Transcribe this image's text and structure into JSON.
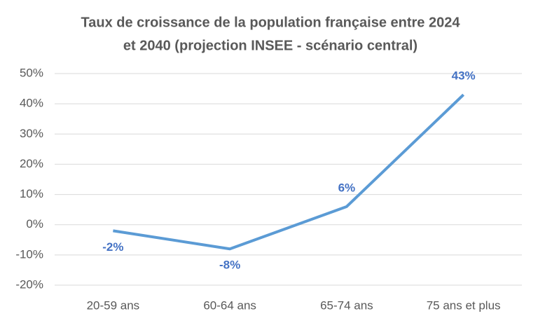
{
  "chart_data": {
    "type": "line",
    "title": [
      "Taux de croissance de la population française entre 2024",
      "et 2040 (projection INSEE - scénario central)"
    ],
    "categories": [
      "20-59 ans",
      "60-64 ans",
      "65-74 ans",
      "75 ans et plus"
    ],
    "values": [
      -2,
      -8,
      6,
      43
    ],
    "value_labels": [
      "-2%",
      "-8%",
      "6%",
      "43%"
    ],
    "color": "#5b9bd5",
    "label_color": "#4472c4",
    "ylim": [
      -20,
      50
    ],
    "yticks": [
      {
        "value": -20,
        "label": "-20%"
      },
      {
        "value": -10,
        "label": "-10%"
      },
      {
        "value": 0,
        "label": "0%"
      },
      {
        "value": 10,
        "label": "10%"
      },
      {
        "value": 20,
        "label": "20%"
      },
      {
        "value": 30,
        "label": "30%"
      },
      {
        "value": 40,
        "label": "40%"
      },
      {
        "value": 50,
        "label": "50%"
      }
    ],
    "grid": true
  }
}
